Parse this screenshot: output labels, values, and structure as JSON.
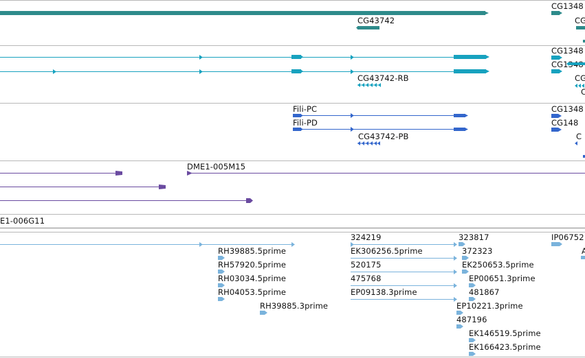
{
  "colors": {
    "gene": "#2e8b8b",
    "mrna": "#17a2bf",
    "protein": "#3366cc",
    "clone": "#6a4aa0",
    "est": "#7ab3dc",
    "separator": "#b8b8b8"
  },
  "tracks": {
    "gene": {
      "labels": [
        "CG43742",
        "CG1348",
        "CG"
      ]
    },
    "mrna": {
      "labels": [
        "CG1348",
        "CG1348",
        "CG43742-RB",
        "CG",
        "C"
      ]
    },
    "protein": {
      "labels": [
        "Fili-PC",
        "Fili-PD",
        "CG43742-PB",
        "CG1348",
        "CG148",
        "C"
      ]
    },
    "clone": {
      "labels": [
        "DME1-005M15"
      ]
    },
    "clone_ends": {
      "labels": [
        "E1-006G11"
      ]
    },
    "est": {
      "labels": [
        "RH39885.5prime",
        "RH57920.5prime",
        "RH03034.5prime",
        "RH04053.5prime",
        "RH39885.3prime",
        "324219",
        "EK306256.5prime",
        "520175",
        "475768",
        "EP09138.3prime",
        "323817",
        "372323",
        "EK250653.5prime",
        "EP00651.3prime",
        "481867",
        "EP10221.3prime",
        "487196",
        "EK146519.5prime",
        "EK166423.5prime",
        "IP06752",
        "A"
      ]
    }
  }
}
